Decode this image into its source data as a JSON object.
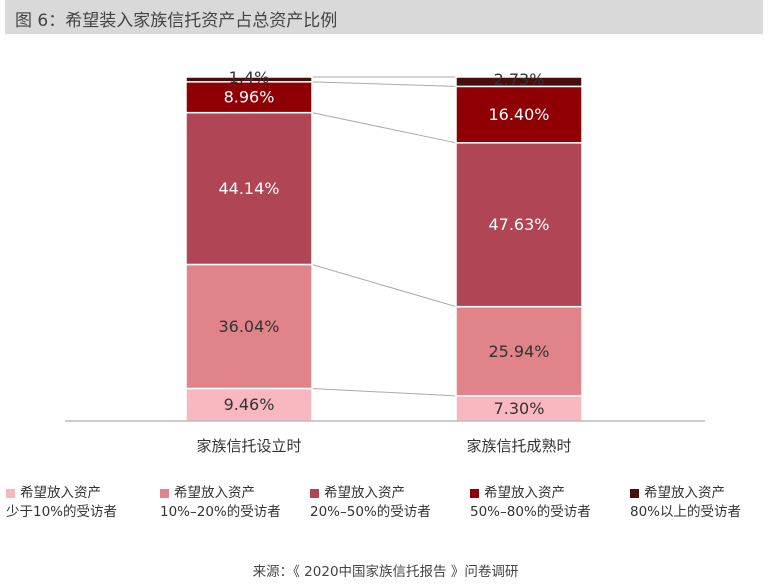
{
  "header": {
    "title": "图 6：希望装入家族信托资产占总资产比例"
  },
  "chart_data": {
    "type": "bar",
    "stacked": true,
    "percent": true,
    "categories": [
      "家族信托设立时",
      "家族信托成熟时"
    ],
    "series": [
      {
        "name_line1": "希望放入资产",
        "name_line2": "少于10%的受访者",
        "color": "#f9b8bf",
        "values": [
          9.46,
          7.3
        ],
        "labels": [
          "9.46%",
          "7.30%"
        ],
        "label_color": "#333333"
      },
      {
        "name_line1": "希望放入资产",
        "name_line2": "10%–20%的受访者",
        "color": "#e08489",
        "values": [
          36.04,
          25.94
        ],
        "labels": [
          "36.04%",
          "25.94%"
        ],
        "label_color": "#333333"
      },
      {
        "name_line1": "希望放入资产",
        "name_line2": "20%–50%的受访者",
        "color": "#b04555",
        "values": [
          44.14,
          47.63
        ],
        "labels": [
          "44.14%",
          "47.63%"
        ],
        "label_color": "#ffffff"
      },
      {
        "name_line1": "希望放入资产",
        "name_line2": "50%–80%的受访者",
        "color": "#8f0005",
        "values": [
          8.96,
          16.4
        ],
        "labels": [
          "8.96%",
          "16.40%"
        ],
        "label_color": "#ffffff"
      },
      {
        "name_line1": "希望放入资产",
        "name_line2": "80%以上的受访者",
        "color": "#4a0d0d",
        "values": [
          1.4,
          2.73
        ],
        "labels": [
          "1.4%",
          "2.73%"
        ],
        "label_color": "#333333"
      }
    ],
    "legend_position": "bottom",
    "grid": false
  },
  "source": "来源：《 2020中国家族信托报告 》问卷调研"
}
